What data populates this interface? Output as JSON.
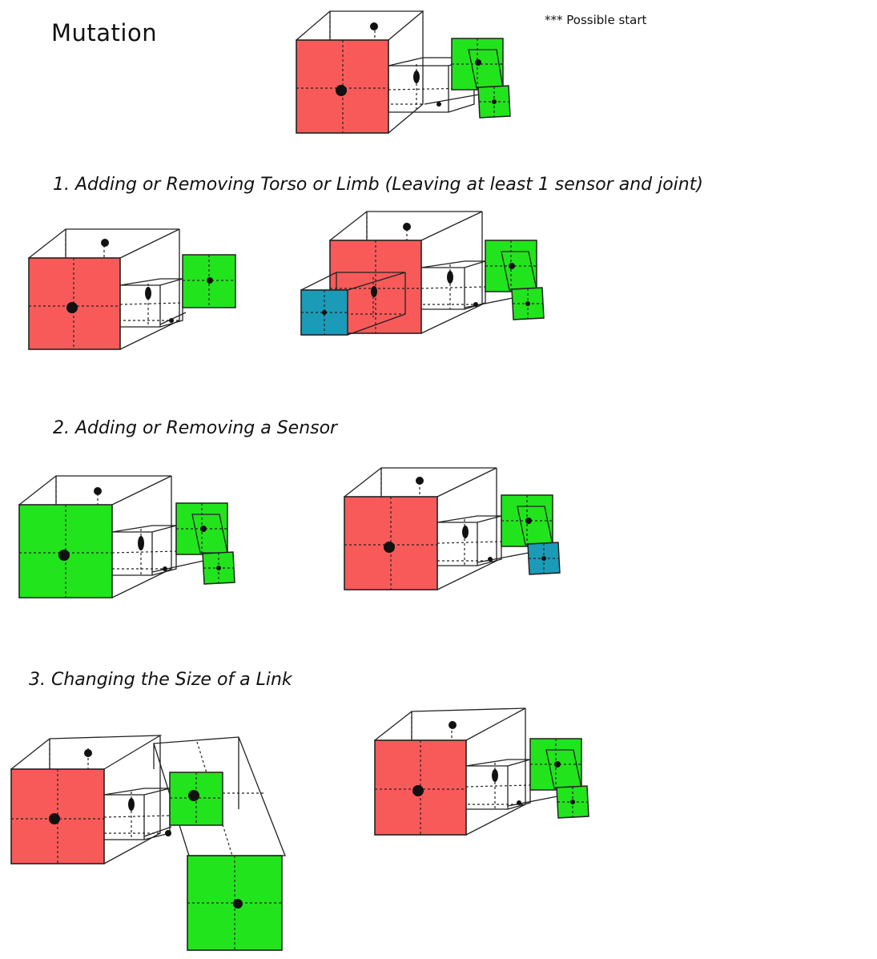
{
  "title": "Mutation",
  "note": "*** Possible start",
  "sections": [
    {
      "label": "1. Adding or Removing Torso or Limb (Leaving at least 1 sensor and joint)"
    },
    {
      "label": "2. Adding or Removing a Sensor"
    },
    {
      "label": "3. Changing the Size of a Link"
    }
  ],
  "legend_colors": {
    "non_sensor_link": "#F85A5A",
    "sensor_link": "#22E41D",
    "added_link": "#1B9BB8"
  }
}
